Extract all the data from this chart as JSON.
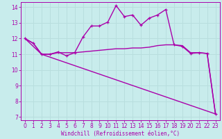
{
  "xlabel": "Windchill (Refroidissement éolien,°C)",
  "xlim": [
    -0.5,
    23.5
  ],
  "ylim": [
    6.8,
    14.3
  ],
  "yticks": [
    7,
    8,
    9,
    10,
    11,
    12,
    13,
    14
  ],
  "xticks": [
    0,
    1,
    2,
    3,
    4,
    5,
    6,
    7,
    8,
    9,
    10,
    11,
    12,
    13,
    14,
    15,
    16,
    17,
    18,
    19,
    20,
    21,
    22,
    23
  ],
  "bg_color": "#c8ecec",
  "grid_color": "#b8dede",
  "line_color": "#aa00aa",
  "line1_x": [
    0,
    1,
    2,
    3,
    4,
    5,
    6,
    7,
    8,
    9,
    10,
    11,
    12,
    13,
    14,
    15,
    16,
    17,
    18,
    19,
    20,
    21,
    22,
    23
  ],
  "line1_y": [
    12.0,
    11.7,
    11.0,
    11.0,
    11.15,
    10.9,
    11.1,
    12.1,
    12.8,
    12.8,
    13.05,
    14.1,
    13.4,
    13.5,
    12.85,
    13.3,
    13.5,
    13.85,
    11.6,
    11.5,
    11.05,
    11.1,
    11.05,
    7.2
  ],
  "line2_x": [
    0,
    1,
    2,
    3,
    4,
    5,
    6,
    7,
    8,
    9,
    10,
    11,
    12,
    13,
    14,
    15,
    16,
    17,
    18,
    19,
    20,
    21,
    22,
    23
  ],
  "line2_y": [
    12.0,
    11.7,
    11.0,
    11.0,
    11.1,
    11.1,
    11.1,
    11.15,
    11.2,
    11.25,
    11.3,
    11.35,
    11.35,
    11.4,
    11.4,
    11.45,
    11.55,
    11.6,
    11.6,
    11.55,
    11.1,
    11.1,
    11.05,
    7.2
  ],
  "line3_x": [
    0,
    2,
    23
  ],
  "line3_y": [
    12.0,
    11.0,
    7.2
  ],
  "markersize": 3.5,
  "linewidth": 1.0
}
